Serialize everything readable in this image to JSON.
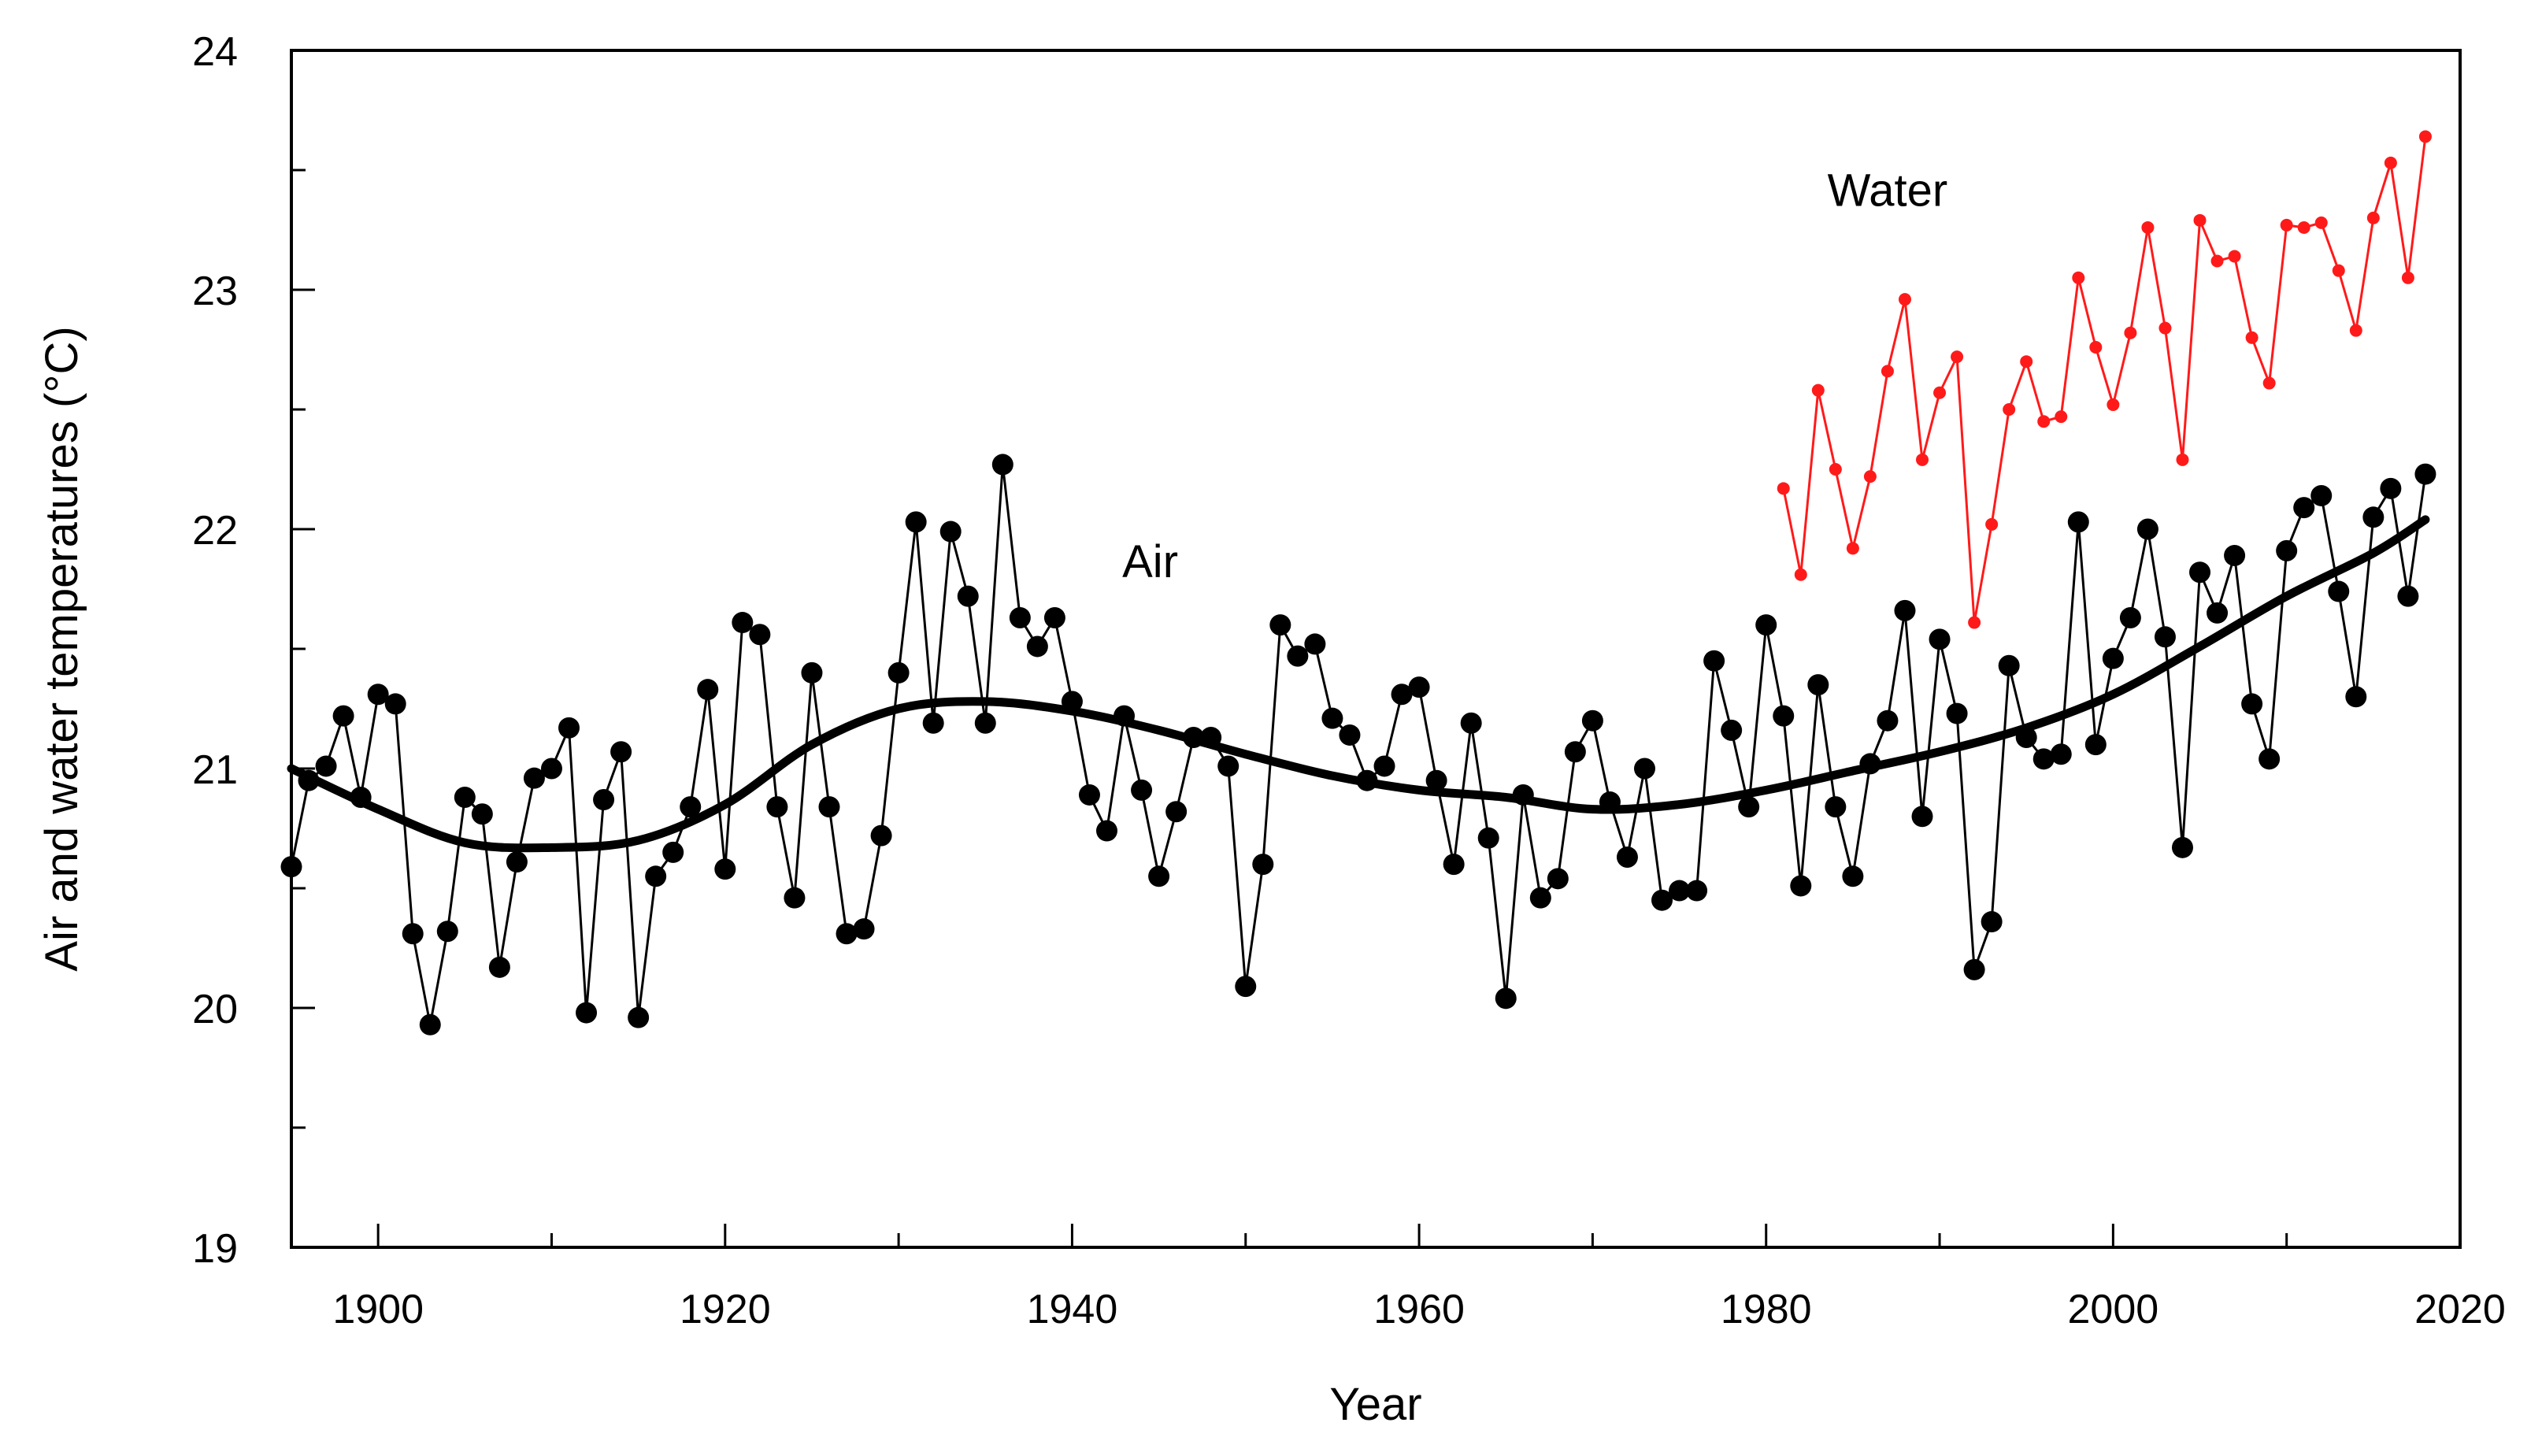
{
  "chart_data": {
    "type": "line",
    "title": "",
    "xlabel": "Year",
    "ylabel": "Air and water temperatures (°C)",
    "xlim": [
      1895,
      2020
    ],
    "ylim": [
      19,
      24
    ],
    "xticks": [
      1900,
      1920,
      1940,
      1960,
      1980,
      2000,
      2020
    ],
    "yticks": [
      19,
      20,
      21,
      22,
      23,
      24
    ],
    "grid": false,
    "legend": "none",
    "annotations": [
      {
        "id": "air",
        "text": "Air",
        "x": 1944.5,
        "y": 21.8
      },
      {
        "id": "water",
        "text": "Water",
        "x": 1987,
        "y": 23.35
      }
    ],
    "series": [
      {
        "name": "Air",
        "color": "#000000",
        "marker": "circle",
        "x": [
          1895,
          1896,
          1897,
          1898,
          1899,
          1900,
          1901,
          1902,
          1903,
          1904,
          1905,
          1906,
          1907,
          1908,
          1909,
          1910,
          1911,
          1912,
          1913,
          1914,
          1915,
          1916,
          1917,
          1918,
          1919,
          1920,
          1921,
          1922,
          1923,
          1924,
          1925,
          1926,
          1927,
          1928,
          1929,
          1930,
          1931,
          1932,
          1933,
          1934,
          1935,
          1936,
          1937,
          1938,
          1939,
          1940,
          1941,
          1942,
          1943,
          1944,
          1945,
          1946,
          1947,
          1948,
          1949,
          1950,
          1951,
          1952,
          1953,
          1954,
          1955,
          1956,
          1957,
          1958,
          1959,
          1960,
          1961,
          1962,
          1963,
          1964,
          1965,
          1966,
          1967,
          1968,
          1969,
          1970,
          1971,
          1972,
          1973,
          1974,
          1975,
          1976,
          1977,
          1978,
          1979,
          1980,
          1981,
          1982,
          1983,
          1984,
          1985,
          1986,
          1987,
          1988,
          1989,
          1990,
          1991,
          1992,
          1993,
          1994,
          1995,
          1996,
          1997,
          1998,
          1999,
          2000,
          2001,
          2002,
          2003,
          2004,
          2005,
          2006,
          2007,
          2008,
          2009,
          2010,
          2011,
          2012,
          2013,
          2014,
          2015,
          2016,
          2017,
          2018
        ],
        "values": [
          20.59,
          20.95,
          21.01,
          21.22,
          20.88,
          21.31,
          21.27,
          20.31,
          19.93,
          20.32,
          20.88,
          20.81,
          20.17,
          20.61,
          20.96,
          21.0,
          21.17,
          19.98,
          20.87,
          21.07,
          19.96,
          20.55,
          20.65,
          20.84,
          21.33,
          20.58,
          21.61,
          21.56,
          20.84,
          20.46,
          21.4,
          20.84,
          20.31,
          20.33,
          20.72,
          21.4,
          22.03,
          21.19,
          21.99,
          21.72,
          21.19,
          22.27,
          21.63,
          21.51,
          21.63,
          21.28,
          20.89,
          20.74,
          21.22,
          20.91,
          20.55,
          20.82,
          21.13,
          21.13,
          21.01,
          20.09,
          20.6,
          21.6,
          21.47,
          21.52,
          21.21,
          21.14,
          20.95,
          21.01,
          21.31,
          21.34,
          20.95,
          20.6,
          21.19,
          20.71,
          20.04,
          20.89,
          20.46,
          20.54,
          21.07,
          21.2,
          20.86,
          20.63,
          21.0,
          20.45,
          20.49,
          20.49,
          21.45,
          21.16,
          20.84,
          21.6,
          21.22,
          20.51,
          21.35,
          20.84,
          20.55,
          21.02,
          21.2,
          21.66,
          20.8,
          21.54,
          21.23,
          20.16,
          20.36,
          21.43,
          21.13,
          21.04,
          21.06,
          22.03,
          21.1,
          21.46,
          21.63,
          22.0,
          21.55,
          20.67,
          21.82,
          21.65,
          21.89,
          21.27,
          21.04,
          21.91,
          22.09,
          22.14,
          21.74,
          21.3,
          22.05,
          22.17,
          21.72,
          22.23
        ]
      },
      {
        "name": "Air (smoothed)",
        "color": "#000000",
        "marker": "none",
        "x": [
          1895,
          1900,
          1905,
          1910,
          1915,
          1920,
          1925,
          1930,
          1935,
          1940,
          1945,
          1950,
          1955,
          1960,
          1965,
          1970,
          1975,
          1980,
          1985,
          1990,
          1995,
          2000,
          2005,
          2010,
          2015,
          2018
        ],
        "values": [
          21.0,
          20.83,
          20.69,
          20.67,
          20.7,
          20.85,
          21.1,
          21.25,
          21.28,
          21.24,
          21.16,
          21.06,
          20.97,
          20.91,
          20.88,
          20.83,
          20.85,
          20.91,
          20.99,
          21.07,
          21.17,
          21.31,
          21.51,
          21.72,
          21.9,
          22.04
        ]
      },
      {
        "name": "Water",
        "color": "#ff1a1a",
        "marker": "circle",
        "x": [
          1981,
          1982,
          1983,
          1984,
          1985,
          1986,
          1987,
          1988,
          1989,
          1990,
          1991,
          1992,
          1993,
          1994,
          1995,
          1996,
          1997,
          1998,
          1999,
          2000,
          2001,
          2002,
          2003,
          2004,
          2005,
          2006,
          2007,
          2008,
          2009,
          2010,
          2011,
          2012,
          2013,
          2014,
          2015,
          2016,
          2017,
          2018
        ],
        "values": [
          22.17,
          21.81,
          22.58,
          22.25,
          21.92,
          22.22,
          22.66,
          22.96,
          22.29,
          22.57,
          22.72,
          21.61,
          22.02,
          22.5,
          22.7,
          22.45,
          22.47,
          23.05,
          22.76,
          22.52,
          22.82,
          23.26,
          22.84,
          22.29,
          23.29,
          23.12,
          23.14,
          22.8,
          22.61,
          23.27,
          23.26,
          23.28,
          23.08,
          22.83,
          23.3,
          23.53,
          23.05,
          23.64
        ]
      }
    ]
  }
}
